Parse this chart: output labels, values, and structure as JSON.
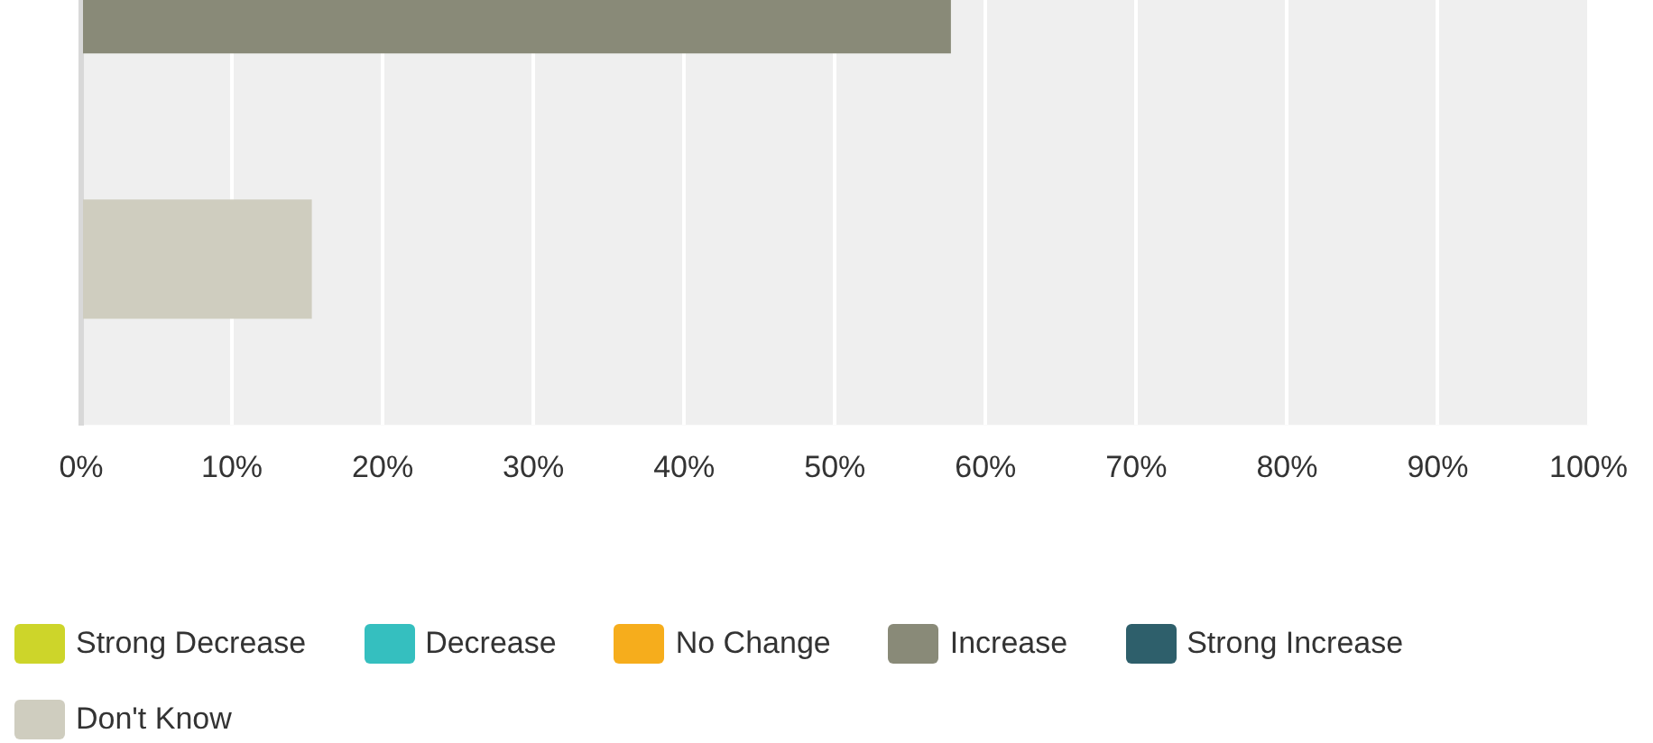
{
  "chart_data": {
    "type": "bar",
    "orientation": "horizontal",
    "categories": [
      null
    ],
    "series": [
      {
        "name": "Strong Decrease",
        "color": "#cdd52a",
        "values": [
          null
        ]
      },
      {
        "name": "Decrease",
        "color": "#35bfbf",
        "values": [
          null
        ]
      },
      {
        "name": "No Change",
        "color": "#f6ad1c",
        "values": [
          null
        ]
      },
      {
        "name": "Increase",
        "color": "#898a78",
        "values": [
          57.7
        ]
      },
      {
        "name": "Strong Increase",
        "color": "#2e5f6b",
        "values": [
          0
        ]
      },
      {
        "name": "Don't Know",
        "color": "#cfcdbf",
        "values": [
          15.3
        ]
      }
    ],
    "xlim": [
      0,
      100
    ],
    "xticks": [
      {
        "value": 0,
        "label": "0%"
      },
      {
        "value": 10,
        "label": "10%"
      },
      {
        "value": 20,
        "label": "20%"
      },
      {
        "value": 30,
        "label": "30%"
      },
      {
        "value": 40,
        "label": "40%"
      },
      {
        "value": 50,
        "label": "50%"
      },
      {
        "value": 60,
        "label": "60%"
      },
      {
        "value": 70,
        "label": "70%"
      },
      {
        "value": 80,
        "label": "80%"
      },
      {
        "value": 90,
        "label": "90%"
      },
      {
        "value": 100,
        "label": "100%"
      }
    ],
    "grid": "x",
    "legend": "bottom",
    "tick_labels": "x"
  }
}
